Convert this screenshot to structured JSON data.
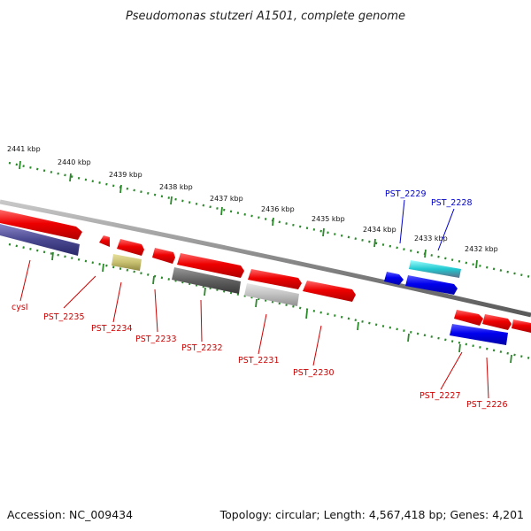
{
  "title": "Pseudomonas stutzeri A1501, complete genome",
  "footer": {
    "accession": "Accession: NC_009434",
    "summary": "Topology: circular; Length: 4,567,418 bp; Genes: 4,201"
  },
  "colors": {
    "backbone": "#8a8a8a",
    "ruler": "#2a8a2a",
    "red_gene": "#ee0000",
    "blue_gene": "#0000ee",
    "label_red": "#cc0000",
    "label_blue": "#0000cc"
  },
  "ruler_labels": [
    "2441 kbp",
    "2440 kbp",
    "2439 kbp",
    "2438 kbp",
    "2437 kbp",
    "2436 kbp",
    "2435 kbp",
    "2434 kbp",
    "2433 kbp",
    "2432 kbp"
  ],
  "gene_labels": [
    {
      "text": "cysI",
      "color": "red"
    },
    {
      "text": "PST_2235",
      "color": "red"
    },
    {
      "text": "PST_2234",
      "color": "red"
    },
    {
      "text": "PST_2233",
      "color": "red"
    },
    {
      "text": "PST_2232",
      "color": "red"
    },
    {
      "text": "PST_2231",
      "color": "red"
    },
    {
      "text": "PST_2230",
      "color": "red"
    },
    {
      "text": "PST_2229",
      "color": "blue"
    },
    {
      "text": "PST_2228",
      "color": "blue"
    },
    {
      "text": "PST_2227",
      "color": "red"
    },
    {
      "text": "PST_2226",
      "color": "red"
    }
  ]
}
